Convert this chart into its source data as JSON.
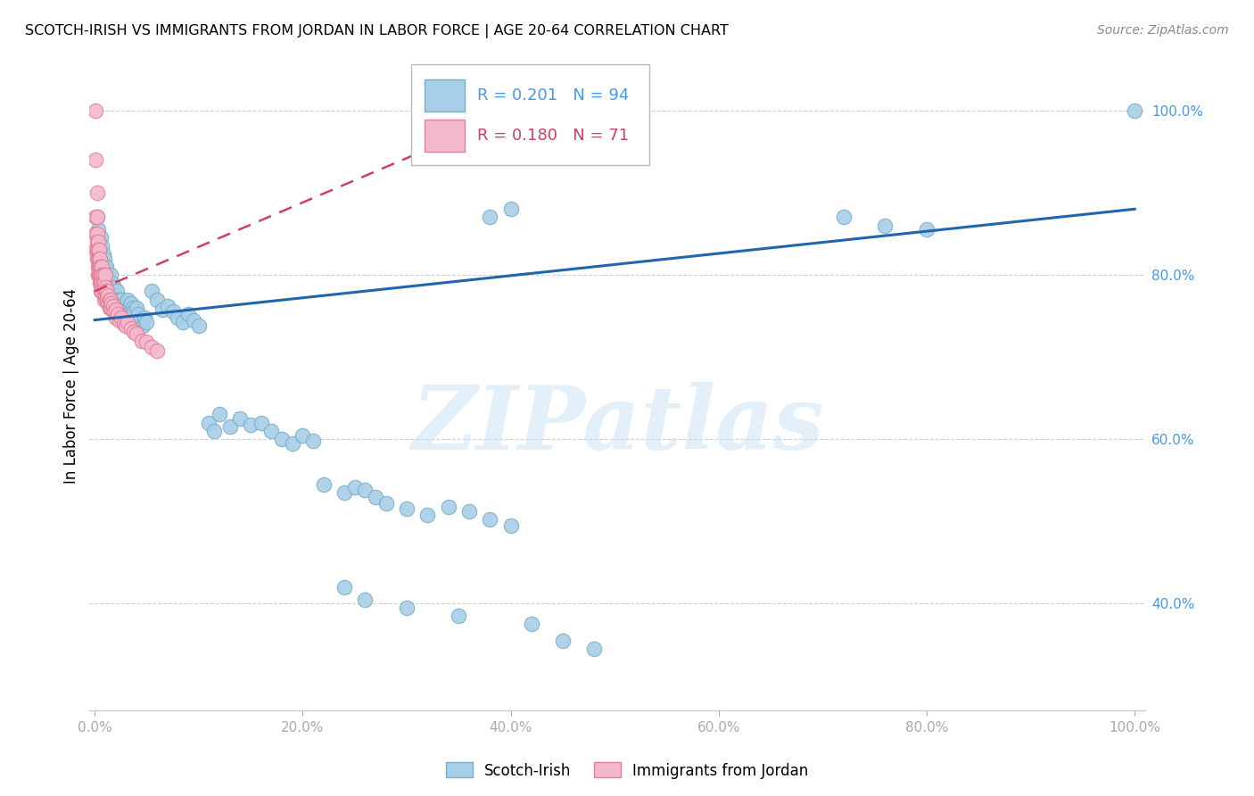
{
  "title": "SCOTCH-IRISH VS IMMIGRANTS FROM JORDAN IN LABOR FORCE | AGE 20-64 CORRELATION CHART",
  "source": "Source: ZipAtlas.com",
  "ylabel": "In Labor Force | Age 20-64",
  "watermark": "ZIPatlas",
  "legend1_label": "Scotch-Irish",
  "legend2_label": "Immigrants from Jordan",
  "r1": 0.201,
  "n1": 94,
  "r2": 0.18,
  "n2": 71,
  "blue_color": "#a8cfe8",
  "blue_edge": "#7aaec8",
  "pink_color": "#f4b8cc",
  "pink_edge": "#e08098",
  "blue_line_color": "#2166ac",
  "pink_line_color": "#d04060",
  "grid_color": "#d0d0d0",
  "right_axis_color": "#4499ee",
  "xlim": [
    -0.005,
    1.01
  ],
  "ylim": [
    0.27,
    1.06
  ],
  "blue_line_x0": 0.0,
  "blue_line_y0": 0.745,
  "blue_line_x1": 1.0,
  "blue_line_y1": 0.88,
  "pink_line_x0": 0.0,
  "pink_line_y0": 0.78,
  "pink_line_x1": 0.5,
  "pink_line_y1": 1.05
}
